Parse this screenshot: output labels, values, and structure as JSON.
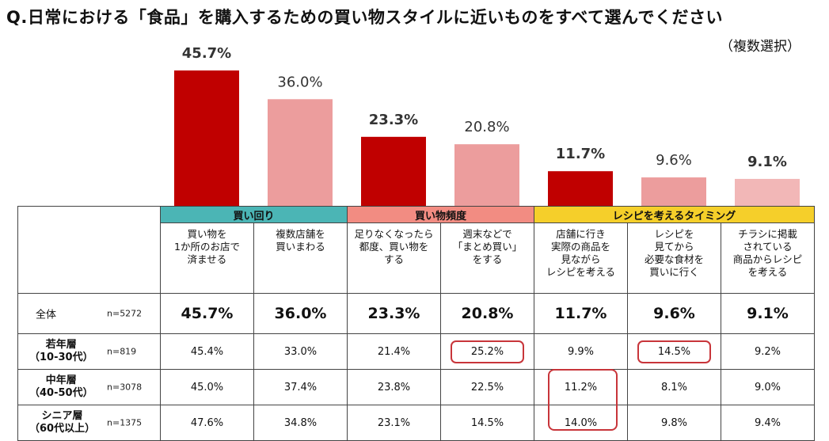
{
  "title": "Q.日常における「食品」を購入するための買い物スタイルに近いものをすべて選んでください",
  "subtitle": "（複数選択）",
  "colors": {
    "dark": "#c00000",
    "light": "#ec9d9d",
    "lightest": "#f2b7b7",
    "teal": "#4bb5b5",
    "salmon": "#f28c82",
    "yellow": "#f5cf2a",
    "highlight": "#c8353a"
  },
  "chart_data": {
    "type": "bar",
    "title": "Q.日常における「食品」を購入するための買い物スタイルに近いものをすべて選んでください",
    "categories": [
      "1か所のお店で済ませる",
      "複数店舗を買いまわる",
      "都度、買い物をする",
      "まとめ買いをする",
      "実際の商品を見ながらレシピを考える",
      "必要な食材を買いに行く",
      "商品からレシピを考える"
    ],
    "values": [
      45.7,
      36.0,
      23.3,
      20.8,
      11.7,
      9.6,
      9.1
    ],
    "labels": [
      "45.7%",
      "36.0%",
      "23.3%",
      "20.8%",
      "11.7%",
      "9.6%",
      "9.1%"
    ],
    "ylim": [
      0,
      50
    ],
    "xlabel": "",
    "ylabel": ""
  },
  "groups": [
    {
      "label": "買い回り"
    },
    {
      "label": "買い物頻度"
    },
    {
      "label": "レシピを考えるタイミング"
    }
  ],
  "columns": [
    {
      "l1": "買い物を",
      "l2": "1か所のお店で",
      "l3": "済ませる",
      "l4": ""
    },
    {
      "l1": "複数店舗を",
      "l2": "買いまわる",
      "l3": "",
      "l4": ""
    },
    {
      "l1": "足りなくなったら",
      "l2": "都度、買い物を",
      "l3": "する",
      "l4": ""
    },
    {
      "l1": "週末などで",
      "l2": "「まとめ買い」",
      "l3": "をする",
      "l4": ""
    },
    {
      "l1": "店舗に行き",
      "l2": "実際の商品を",
      "l3": "見ながら",
      "l4": "レシピを考える"
    },
    {
      "l1": "レシピを",
      "l2": "見てから",
      "l3": "必要な食材を",
      "l4": "買いに行く"
    },
    {
      "l1": "チラシに掲載",
      "l2": "されている",
      "l3": "商品からレシピ",
      "l4": "を考える"
    }
  ],
  "rows": [
    {
      "name": "全体",
      "sub": "",
      "n": "n=5272",
      "values": [
        "45.7%",
        "36.0%",
        "23.3%",
        "20.8%",
        "11.7%",
        "9.6%",
        "9.1%"
      ]
    },
    {
      "name": "若年層",
      "sub": "（10-30代）",
      "n": "n=819",
      "values": [
        "45.4%",
        "33.0%",
        "21.4%",
        "25.2%",
        "9.9%",
        "14.5%",
        "9.2%"
      ]
    },
    {
      "name": "中年層",
      "sub": "（40-50代）",
      "n": "n=3078",
      "values": [
        "45.0%",
        "37.4%",
        "23.8%",
        "22.5%",
        "11.2%",
        "8.1%",
        "9.0%"
      ]
    },
    {
      "name": "シニア層",
      "sub": "（60代以上）",
      "n": "n=1375",
      "values": [
        "47.6%",
        "34.8%",
        "23.1%",
        "14.5%",
        "14.0%",
        "9.8%",
        "9.4%"
      ]
    }
  ]
}
